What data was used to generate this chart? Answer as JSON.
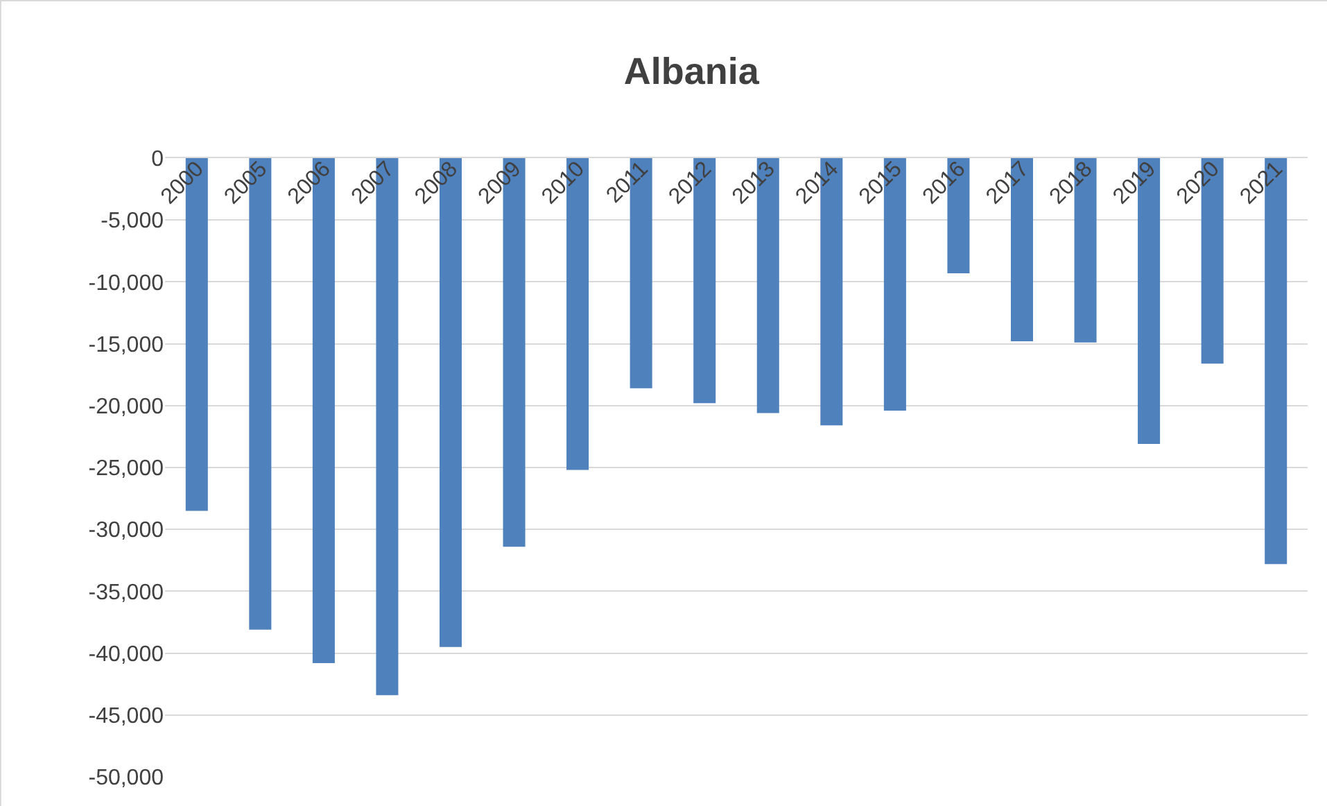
{
  "chart_data": {
    "type": "bar",
    "title": "Albania",
    "categories": [
      "2000",
      "2005",
      "2006",
      "2007",
      "2008",
      "2009",
      "2010",
      "2011",
      "2012",
      "2013",
      "2014",
      "2015",
      "2016",
      "2017",
      "2018",
      "2019",
      "2020",
      "2021"
    ],
    "values": [
      -28500,
      -38100,
      -40800,
      -43400,
      -39500,
      -31400,
      -25200,
      -18600,
      -19800,
      -20600,
      -21600,
      -20400,
      -9300,
      -14800,
      -14900,
      -23100,
      -16600,
      -32800
    ],
    "color": "#4f81bd",
    "ylim": [
      -50000,
      0
    ],
    "yticks": [
      0,
      {
        "value": -5000,
        "label": "-5,000"
      },
      {
        "value": -10000,
        "label": "-10,000"
      },
      {
        "value": -15000,
        "label": "-15,000"
      },
      {
        "value": -20000,
        "label": "-20,000"
      },
      {
        "value": -25000,
        "label": "-25,000"
      },
      {
        "value": -30000,
        "label": "-30,000"
      },
      {
        "value": -35000,
        "label": "-35,000"
      },
      {
        "value": -40000,
        "label": "-40,000"
      },
      {
        "value": -45000,
        "label": "-45,000"
      },
      {
        "value": -50000,
        "label": "-50,000"
      }
    ],
    "grid": true
  }
}
